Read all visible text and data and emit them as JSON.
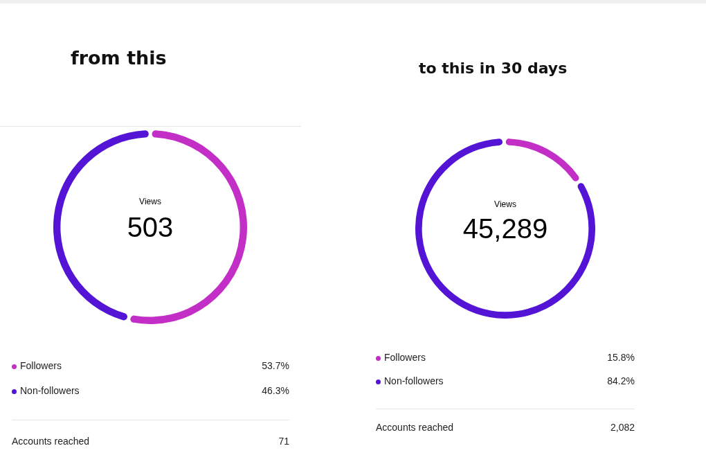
{
  "chart_data": [
    {
      "type": "donut",
      "title": "from this",
      "categories": [
        "Followers",
        "Non-followers"
      ],
      "values": [
        53.7,
        46.3
      ],
      "colors": [
        "#c22ec6",
        "#5414d6"
      ],
      "value_labels": [
        "53.7%",
        "46.3%"
      ],
      "legend": "bottom",
      "annotations": [
        "Views",
        "503",
        "Accounts reached",
        "71"
      ]
    },
    {
      "type": "donut",
      "title": "to this in 30 days",
      "categories": [
        "Followers",
        "Non-followers"
      ],
      "values": [
        15.8,
        84.2
      ],
      "colors": [
        "#c22ec6",
        "#5414d6"
      ],
      "value_labels": [
        "15.8%",
        "84.2%"
      ],
      "legend": "bottom",
      "annotations": [
        "Views",
        "45,289",
        "Accounts reached",
        "2,082"
      ]
    }
  ]
}
